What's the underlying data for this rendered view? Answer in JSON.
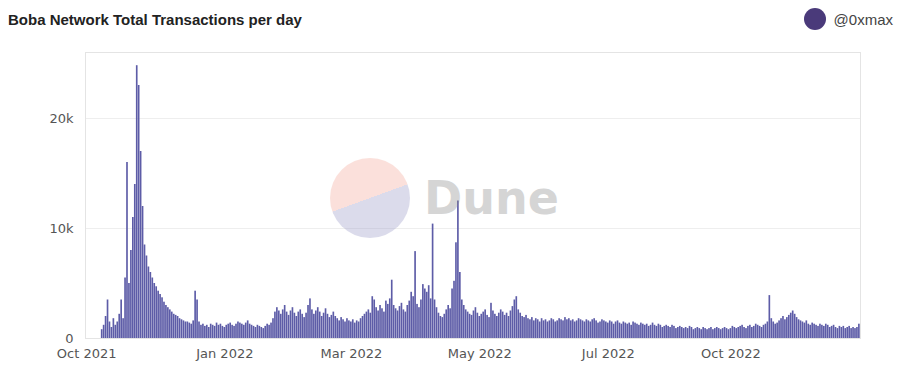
{
  "chart_data": {
    "type": "bar",
    "title": "Boba Network Total Transactions per day",
    "author": "@0xmax",
    "watermark": "Dune",
    "color": "#5d5ca7",
    "grid": true,
    "ylim": [
      0,
      26000
    ],
    "yticks": [
      0,
      {
        "value": 10000,
        "label": "10k"
      },
      {
        "value": 20000,
        "label": "20k"
      }
    ],
    "categories": [
      "Oct 2021",
      null,
      null,
      null,
      null,
      null,
      null,
      null,
      null,
      null,
      null,
      null,
      null,
      null,
      null,
      null,
      null,
      null,
      null,
      null,
      null,
      null,
      null,
      null,
      null,
      null,
      null,
      null,
      null,
      null,
      null,
      null,
      null,
      null,
      null,
      null,
      null,
      null,
      null,
      null,
      null,
      null,
      null,
      null,
      null,
      null,
      null,
      null,
      null,
      null,
      null,
      null,
      null,
      null,
      null,
      null,
      null,
      null,
      null,
      null,
      null,
      null,
      null,
      null,
      null,
      null,
      null,
      null,
      null,
      null,
      null,
      "Jan 2022",
      null,
      null,
      null,
      null,
      null,
      null,
      null,
      null,
      null,
      null,
      null,
      null,
      null,
      null,
      null,
      null,
      null,
      null,
      null,
      null,
      null,
      null,
      null,
      null,
      null,
      null,
      null,
      null,
      null,
      null,
      null,
      null,
      null,
      null,
      null,
      null,
      null,
      null,
      null,
      null,
      null,
      null,
      null,
      null,
      null,
      null,
      null,
      null,
      null,
      null,
      null,
      null,
      null,
      null,
      null,
      null,
      null,
      null,
      null,
      null,
      null,
      null,
      null,
      null,
      "Mar 2022",
      null,
      null,
      null,
      null,
      null,
      null,
      null,
      null,
      null,
      null,
      null,
      null,
      null,
      null,
      null,
      null,
      null,
      null,
      null,
      null,
      null,
      null,
      null,
      null,
      null,
      null,
      null,
      null,
      null,
      null,
      null,
      null,
      null,
      null,
      null,
      null,
      null,
      null,
      null,
      null,
      null,
      null,
      null,
      null,
      null,
      null,
      null,
      null,
      null,
      null,
      null,
      null,
      null,
      null,
      null,
      null,
      null,
      null,
      null,
      null,
      null,
      null,
      null,
      null,
      null,
      "May 2022",
      null,
      null,
      null,
      null,
      null,
      null,
      null,
      null,
      null,
      null,
      null,
      null,
      null,
      null,
      null,
      null,
      null,
      null,
      null,
      null,
      null,
      null,
      null,
      null,
      null,
      null,
      null,
      null,
      null,
      null,
      null,
      null,
      null,
      null,
      null,
      null,
      null,
      null,
      null,
      null,
      null,
      null,
      null,
      null,
      null,
      null,
      null,
      null,
      null,
      null,
      null,
      null,
      null,
      null,
      null,
      null,
      null,
      null,
      null,
      null,
      null,
      null,
      null,
      null,
      null,
      "Jul 2022",
      null,
      null,
      null,
      null,
      null,
      null,
      null,
      null,
      null,
      null,
      null,
      null,
      null,
      null,
      null,
      null,
      null,
      null,
      null,
      null,
      null,
      null,
      null,
      null,
      null,
      null,
      null,
      null,
      null,
      null,
      null,
      null,
      null,
      null,
      null,
      null,
      null,
      null,
      null,
      null,
      null,
      null,
      null,
      null,
      null,
      null,
      null,
      null,
      null,
      null,
      null,
      null,
      null,
      null,
      null,
      null,
      null,
      null,
      null,
      null,
      null,
      null,
      "Oct 2022",
      null,
      null,
      null,
      null,
      null,
      null,
      null,
      null,
      null,
      null,
      null,
      null,
      null,
      null,
      null,
      null,
      null,
      null,
      null,
      null,
      null,
      null,
      null,
      null,
      null,
      null,
      null,
      null,
      null,
      null,
      null,
      null,
      null,
      null,
      null,
      null,
      null,
      null,
      null,
      null,
      null,
      null,
      null,
      null,
      null,
      null,
      null,
      null,
      null,
      null,
      null,
      null,
      null,
      null,
      null,
      null,
      null,
      null,
      null,
      null,
      null,
      null,
      null,
      null,
      null,
      null
    ],
    "values": [
      null,
      null,
      null,
      null,
      null,
      null,
      null,
      null,
      800,
      1200,
      2000,
      3500,
      1500,
      1000,
      1800,
      1200,
      1500,
      2200,
      3500,
      1800,
      5500,
      16000,
      5000,
      8000,
      11000,
      14000,
      24800,
      23000,
      17000,
      12000,
      8500,
      7500,
      6500,
      6000,
      5500,
      5000,
      4700,
      4300,
      4000,
      3700,
      3300,
      3000,
      2800,
      2600,
      2400,
      2200,
      2100,
      2000,
      1800,
      1700,
      1600,
      1500,
      1500,
      1400,
      1300,
      1600,
      4300,
      3500,
      1500,
      1200,
      1300,
      1100,
      1200,
      1000,
      1300,
      1200,
      1100,
      1400,
      1200,
      1300,
      1100,
      1000,
      1200,
      1300,
      1400,
      1200,
      1100,
      1300,
      1500,
      1400,
      1300,
      1200,
      1400,
      1600,
      1300,
      1200,
      1100,
      1000,
      1200,
      1100,
      1000,
      900,
      1100,
      1300,
      1200,
      1400,
      1800,
      2400,
      2800,
      2500,
      2200,
      2600,
      3000,
      2400,
      2100,
      2500,
      2800,
      2300,
      2000,
      2400,
      2600,
      2200,
      1900,
      2300,
      3000,
      3600,
      2600,
      2200,
      2500,
      2800,
      2400,
      2000,
      2300,
      2700,
      2200,
      1900,
      2100,
      2400,
      2000,
      1800,
      1600,
      1900,
      1700,
      1500,
      1800,
      1600,
      1500,
      1700,
      1400,
      1600,
      1500,
      1800,
      2000,
      2200,
      2400,
      2600,
      2300,
      3800,
      3500,
      2800,
      2500,
      3000,
      2700,
      2400,
      3400,
      3100,
      3600,
      5300,
      3000,
      2700,
      2500,
      2900,
      3200,
      2600,
      2400,
      3000,
      3400,
      4200,
      3800,
      7900,
      3100,
      2800,
      3500,
      4900,
      4500,
      4200,
      4800,
      3600,
      10400,
      3500,
      2800,
      2300,
      2000,
      1900,
      2200,
      2600,
      3000,
      2700,
      4500,
      5200,
      8700,
      12500,
      6000,
      3500,
      3000,
      2600,
      2400,
      2200,
      2100,
      2500,
      2800,
      2300,
      2000,
      2200,
      2400,
      2600,
      2100,
      1900,
      3200,
      2500,
      2200,
      2000,
      2300,
      2600,
      2400,
      2100,
      2300,
      2000,
      2500,
      2900,
      3500,
      3800,
      2600,
      2300,
      2000,
      1900,
      2100,
      1800,
      1700,
      1900,
      1600,
      1800,
      1700,
      1500,
      1800,
      1600,
      1700,
      1500,
      1600,
      1800,
      1700,
      1500,
      1600,
      1800,
      1700,
      1600,
      1900,
      1700,
      1800,
      1600,
      1700,
      1500,
      1600,
      1800,
      1700,
      1600,
      1500,
      1700,
      1600,
      1500,
      1700,
      1800,
      1600,
      1400,
      1500,
      1700,
      1600,
      1500,
      1400,
      1600,
      1500,
      1300,
      1500,
      1600,
      1400,
      1300,
      1500,
      1400,
      1300,
      1400,
      1200,
      1500,
      1400,
      1300,
      1200,
      1400,
      1300,
      1200,
      1300,
      1100,
      1200,
      1400,
      1200,
      1100,
      1300,
      1200,
      1000,
      1100,
      1200,
      1100,
      1000,
      1200,
      1100,
      900,
      1000,
      1100,
      1000,
      900,
      1000,
      900,
      1100,
      1000,
      800,
      900,
      1000,
      900,
      800,
      1000,
      900,
      800,
      900,
      1000,
      800,
      900,
      1000,
      900,
      800,
      900,
      1000,
      900,
      800,
      900,
      1100,
      1000,
      900,
      1000,
      1100,
      1200,
      1000,
      900,
      1100,
      1200,
      1000,
      1100,
      1300,
      1200,
      1100,
      1000,
      1200,
      1300,
      1500,
      3900,
      1800,
      1500,
      1300,
      1400,
      1600,
      1800,
      2000,
      1700,
      1900,
      2100,
      2300,
      2500,
      2200,
      1900,
      1700,
      1600,
      1500,
      1400,
      1600,
      1300,
      1200,
      1400,
      1300,
      1200,
      1100,
      1300,
      1200,
      1100,
      1300,
      1200,
      1000,
      1100,
      1200,
      1000,
      900,
      1100,
      1000,
      1100,
      900,
      1000,
      1100,
      900,
      1000,
      900,
      1000,
      1300
    ]
  }
}
